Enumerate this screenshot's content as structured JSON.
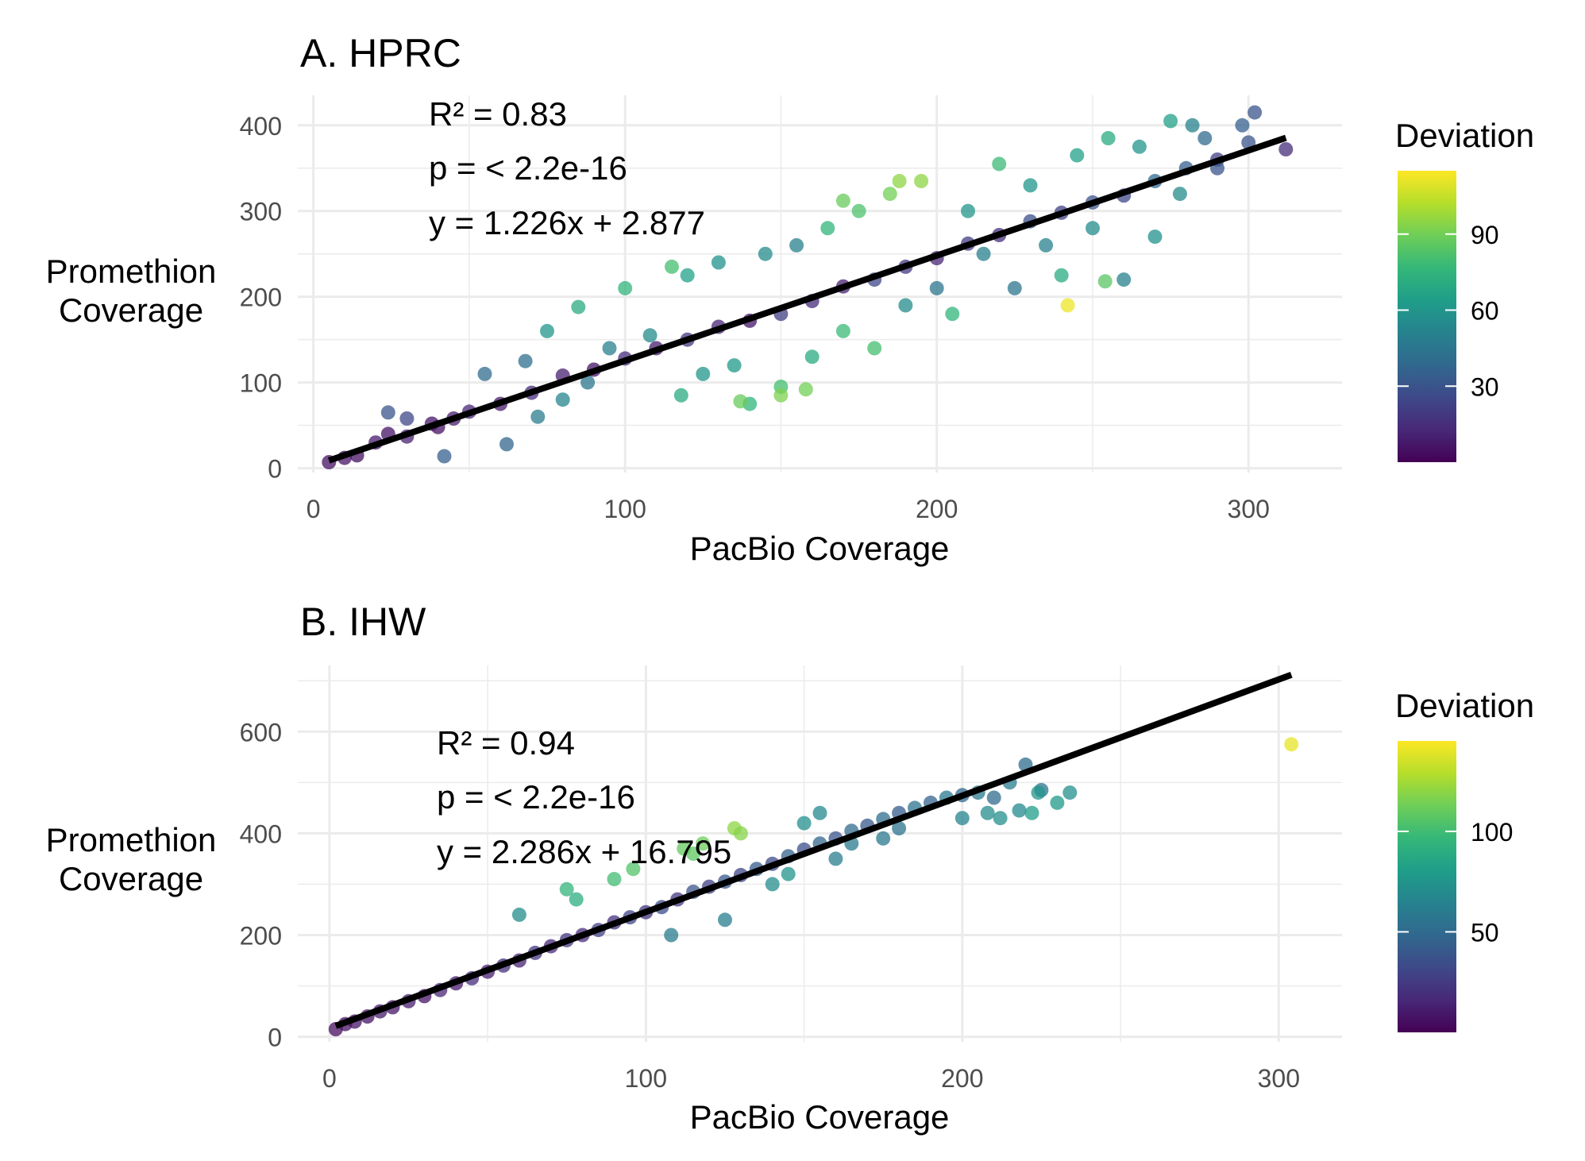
{
  "chart_data": [
    {
      "type": "scatter",
      "title": "A. HPRC",
      "xlabel": "PacBio Coverage",
      "ylabel": [
        "Promethion",
        "Coverage"
      ],
      "xlim": [
        -5,
        330
      ],
      "ylim": [
        -5,
        435
      ],
      "xticks": [
        0,
        100,
        200,
        300
      ],
      "yticks": [
        0,
        100,
        200,
        300,
        400
      ],
      "x_tick_labels": [
        "0",
        "100",
        "200",
        "300"
      ],
      "y_tick_labels": [
        "0",
        "100",
        "200",
        "300",
        "400"
      ],
      "grid": true,
      "annotations": [
        "R² = 0.83",
        "p = < 2.2e-16",
        "y = 1.226x + 2.877"
      ],
      "fit": {
        "slope": 1.226,
        "intercept": 2.877,
        "x_range": [
          5,
          312
        ]
      },
      "legend": {
        "title": "Deviation",
        "position": "right",
        "range": [
          0,
          115
        ],
        "ticks": [
          30,
          60,
          90
        ],
        "tick_labels": [
          "30",
          "60",
          "90"
        ]
      },
      "series": [
        {
          "x": [
            5,
            10,
            14,
            20,
            24,
            30,
            38,
            40,
            45,
            50,
            60,
            70,
            80,
            90,
            100,
            110,
            120,
            130,
            140,
            150,
            160,
            170,
            180,
            190,
            200,
            210,
            220,
            230,
            240,
            250,
            260,
            270,
            280,
            290,
            300,
            312
          ],
          "y": [
            7,
            12,
            15,
            30,
            40,
            37,
            52,
            48,
            58,
            66,
            75,
            88,
            108,
            115,
            128,
            140,
            150,
            165,
            172,
            180,
            195,
            212,
            220,
            235,
            245,
            262,
            272,
            288,
            298,
            310,
            318,
            335,
            350,
            360,
            380,
            372
          ],
          "deviation": [
            5,
            6,
            4,
            8,
            6,
            10,
            7,
            5,
            9,
            12,
            8,
            14,
            10,
            6,
            15,
            9,
            18,
            12,
            7,
            22,
            14,
            10,
            25,
            18,
            12,
            20,
            15,
            28,
            22,
            30,
            25,
            40,
            35,
            22,
            30,
            15
          ]
        },
        {
          "x": [
            24,
            30,
            42,
            55,
            62,
            68,
            72,
            75,
            80,
            85,
            88,
            95,
            100,
            108,
            115,
            118,
            120,
            125,
            130,
            135,
            140,
            145,
            150,
            155,
            160,
            165,
            170,
            175,
            180,
            185,
            190,
            195,
            200,
            205,
            210,
            215,
            220,
            225,
            230,
            235,
            240,
            245,
            250,
            255,
            260,
            265,
            270,
            275,
            278,
            282,
            286,
            290,
            298,
            302
          ],
          "y": [
            65,
            58,
            14,
            110,
            28,
            125,
            60,
            160,
            80,
            188,
            100,
            140,
            210,
            155,
            235,
            85,
            225,
            110,
            240,
            120,
            75,
            250,
            95,
            260,
            130,
            280,
            160,
            300,
            140,
            320,
            190,
            335,
            210,
            180,
            300,
            250,
            355,
            210,
            330,
            260,
            225,
            365,
            280,
            385,
            220,
            375,
            270,
            405,
            320,
            400,
            385,
            350,
            400,
            415
          ],
          "deviation": [
            30,
            25,
            35,
            40,
            38,
            42,
            48,
            60,
            52,
            70,
            45,
            50,
            75,
            55,
            80,
            70,
            65,
            60,
            58,
            62,
            75,
            55,
            80,
            50,
            70,
            75,
            78,
            82,
            80,
            90,
            55,
            95,
            45,
            75,
            60,
            50,
            78,
            45,
            60,
            50,
            70,
            65,
            55,
            70,
            50,
            60,
            58,
            65,
            55,
            50,
            40,
            30,
            35,
            30
          ]
        },
        {
          "x": [
            242,
            254,
            150,
            158,
            137,
            170,
            188
          ],
          "y": [
            190,
            218,
            85,
            92,
            78,
            312,
            335
          ],
          "deviation": [
            112,
            85,
            92,
            90,
            88,
            88,
            95
          ]
        }
      ]
    },
    {
      "type": "scatter",
      "title": "B. IHW",
      "xlabel": "PacBio Coverage",
      "ylabel": [
        "Promethion",
        "Coverage"
      ],
      "xlim": [
        -10,
        320
      ],
      "ylim": [
        -10,
        730
      ],
      "xticks": [
        0,
        100,
        200,
        300
      ],
      "yticks": [
        0,
        200,
        400,
        600
      ],
      "x_tick_labels": [
        "0",
        "100",
        "200",
        "300"
      ],
      "y_tick_labels": [
        "0",
        "200",
        "400",
        "600"
      ],
      "grid": true,
      "annotations": [
        "R² = 0.94",
        "p = < 2.2e-16",
        "y = 2.286x + 16.795"
      ],
      "fit": {
        "slope": 2.286,
        "intercept": 16.795,
        "x_range": [
          2,
          304
        ]
      },
      "legend": {
        "title": "Deviation",
        "position": "right",
        "range": [
          0,
          145
        ],
        "ticks": [
          50,
          100
        ],
        "tick_labels": [
          "50",
          "100"
        ]
      },
      "series": [
        {
          "x": [
            2,
            5,
            8,
            12,
            16,
            20,
            25,
            30,
            35,
            40,
            45,
            50,
            55,
            60,
            65,
            70,
            75,
            80,
            85,
            90,
            95,
            100,
            105,
            110,
            115,
            120,
            125,
            130,
            135,
            140,
            145,
            150,
            155,
            160,
            165,
            170,
            175,
            180,
            185,
            190,
            195,
            200,
            205,
            210,
            215,
            220,
            225
          ],
          "y": [
            15,
            25,
            30,
            40,
            50,
            58,
            70,
            80,
            92,
            105,
            115,
            128,
            140,
            150,
            165,
            178,
            190,
            200,
            210,
            225,
            235,
            245,
            255,
            270,
            285,
            295,
            305,
            318,
            330,
            340,
            355,
            368,
            380,
            390,
            405,
            415,
            428,
            440,
            450,
            460,
            470,
            475,
            480,
            470,
            500,
            535,
            485
          ],
          "deviation": [
            5,
            6,
            8,
            7,
            10,
            9,
            12,
            8,
            15,
            10,
            18,
            12,
            20,
            14,
            22,
            16,
            25,
            18,
            28,
            20,
            30,
            22,
            35,
            25,
            38,
            28,
            40,
            30,
            42,
            32,
            45,
            35,
            48,
            38,
            50,
            40,
            52,
            42,
            55,
            45,
            58,
            48,
            60,
            50,
            62,
            52,
            55
          ]
        },
        {
          "x": [
            60,
            75,
            78,
            90,
            96,
            108,
            112,
            115,
            118,
            125,
            128,
            130,
            140,
            145,
            150,
            155,
            160,
            165,
            175,
            180,
            200,
            208,
            212,
            218,
            222,
            224,
            230,
            234
          ],
          "y": [
            240,
            290,
            270,
            310,
            330,
            200,
            370,
            360,
            380,
            230,
            410,
            400,
            300,
            320,
            420,
            440,
            350,
            380,
            390,
            410,
            430,
            440,
            430,
            445,
            440,
            480,
            460,
            480
          ],
          "deviation": [
            70,
            95,
            90,
            100,
            105,
            60,
            110,
            108,
            112,
            62,
            120,
            118,
            70,
            75,
            72,
            68,
            62,
            60,
            58,
            55,
            65,
            70,
            72,
            68,
            80,
            75,
            78,
            72
          ]
        },
        {
          "x": [
            304
          ],
          "y": [
            575
          ],
          "deviation": [
            140
          ]
        }
      ]
    }
  ],
  "colors": {
    "grid": "#ebebeb",
    "tick_text": "#4d4d4d",
    "text": "#000000",
    "fit_line": "#000000",
    "viridis": [
      "#440154",
      "#482878",
      "#3e4989",
      "#31688e",
      "#26828e",
      "#1f9e89",
      "#35b779",
      "#6ece58",
      "#b5de2b",
      "#fde725"
    ]
  }
}
